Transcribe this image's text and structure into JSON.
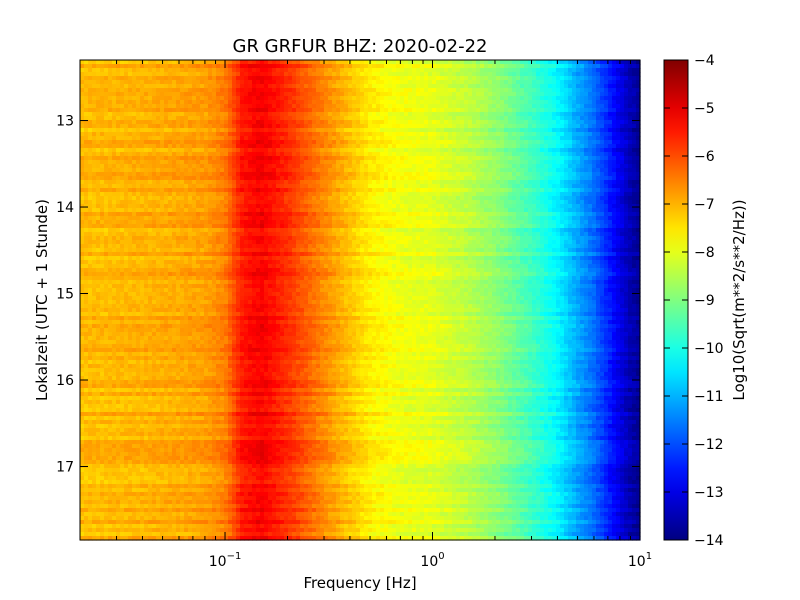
{
  "chart_data": {
    "type": "heatmap",
    "title": "GR GRFUR BHZ: 2020-02-22",
    "xlabel": "Frequency [Hz]",
    "ylabel": "Lokalzeit (UTC + 1 Stunde)",
    "x_scale": "log",
    "xlim": [
      0.02,
      10
    ],
    "ylim": [
      12.3,
      17.85
    ],
    "y_inverted": true,
    "x_ticks": [
      {
        "value": 0.1,
        "base": "10",
        "exp": "−1"
      },
      {
        "value": 1,
        "base": "10",
        "exp": "0"
      },
      {
        "value": 10,
        "base": "10",
        "exp": "1"
      }
    ],
    "y_ticks": [
      {
        "value": 13,
        "label": "13"
      },
      {
        "value": 14,
        "label": "14"
      },
      {
        "value": 15,
        "label": "15"
      },
      {
        "value": 16,
        "label": "16"
      },
      {
        "value": 17,
        "label": "17"
      }
    ],
    "colorbar": {
      "label": "Log10(Sqrt(m**2/s**2/Hz))",
      "colormap": "jet",
      "vmin": -14,
      "vmax": -4,
      "ticks": [
        -4,
        -5,
        -6,
        -7,
        -8,
        -9,
        -10,
        -11,
        -12,
        -13,
        -14
      ],
      "tick_labels": [
        "−4",
        "−5",
        "−6",
        "−7",
        "−8",
        "−9",
        "−10",
        "−11",
        "−12",
        "−13",
        "−14"
      ]
    },
    "frequency_profile": {
      "frequency_hz": [
        0.02,
        0.04,
        0.06,
        0.08,
        0.1,
        0.12,
        0.15,
        0.2,
        0.3,
        0.5,
        0.7,
        1.0,
        1.5,
        2.0,
        3.0,
        4.0,
        5.0,
        6.0,
        7.0,
        8.0,
        9.0,
        10.0
      ],
      "mean_psd_log10": [
        -7.1,
        -7.0,
        -6.9,
        -6.8,
        -6.5,
        -5.5,
        -5.2,
        -5.7,
        -6.6,
        -7.6,
        -7.9,
        -8.0,
        -8.4,
        -8.8,
        -9.6,
        -10.3,
        -11.1,
        -11.7,
        -12.4,
        -13.0,
        -13.5,
        -13.8
      ]
    }
  }
}
